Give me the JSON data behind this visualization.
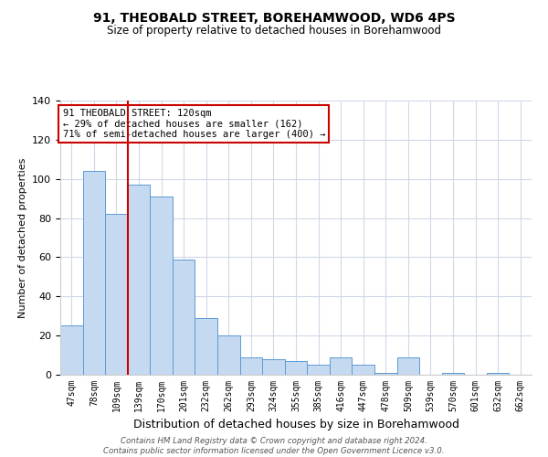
{
  "title": "91, THEOBALD STREET, BOREHAMWOOD, WD6 4PS",
  "subtitle": "Size of property relative to detached houses in Borehamwood",
  "xlabel": "Distribution of detached houses by size in Borehamwood",
  "ylabel": "Number of detached properties",
  "bin_labels": [
    "47sqm",
    "78sqm",
    "109sqm",
    "139sqm",
    "170sqm",
    "201sqm",
    "232sqm",
    "262sqm",
    "293sqm",
    "324sqm",
    "355sqm",
    "385sqm",
    "416sqm",
    "447sqm",
    "478sqm",
    "509sqm",
    "539sqm",
    "570sqm",
    "601sqm",
    "632sqm",
    "662sqm"
  ],
  "bar_heights": [
    25,
    104,
    82,
    97,
    91,
    59,
    29,
    20,
    9,
    8,
    7,
    5,
    9,
    5,
    1,
    9,
    0,
    1,
    0,
    1,
    0
  ],
  "bar_color": "#c5d9f0",
  "bar_edge_color": "#5b9bd5",
  "vline_x_index": 2,
  "vline_color": "#cc0000",
  "annotation_line1": "91 THEOBALD STREET: 120sqm",
  "annotation_line2": "← 29% of detached houses are smaller (162)",
  "annotation_line3": "71% of semi-detached houses are larger (400) →",
  "annotation_box_color": "#cc0000",
  "ylim": [
    0,
    140
  ],
  "yticks": [
    0,
    20,
    40,
    60,
    80,
    100,
    120,
    140
  ],
  "footer_line1": "Contains HM Land Registry data © Crown copyright and database right 2024.",
  "footer_line2": "Contains public sector information licensed under the Open Government Licence v3.0.",
  "background_color": "#ffffff",
  "grid_color": "#d0d8e8"
}
